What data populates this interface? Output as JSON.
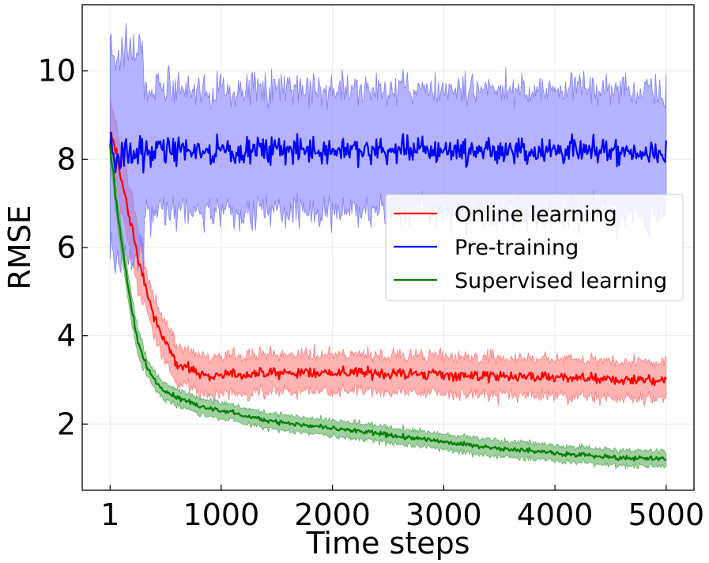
{
  "chart_data": {
    "type": "line",
    "title": "",
    "xlabel": "Time steps",
    "ylabel": "RMSE",
    "xlim": [
      -250,
      5250
    ],
    "ylim": [
      0.5,
      11.5
    ],
    "x_ticks": [
      1,
      1000,
      2000,
      3000,
      4000,
      5000
    ],
    "x_tick_labels": [
      "1",
      "1000",
      "2000",
      "3000",
      "4000",
      "5000"
    ],
    "y_ticks": [
      2,
      4,
      6,
      8,
      10
    ],
    "y_tick_labels": [
      "2",
      "4",
      "6",
      "8",
      "10"
    ],
    "grid": true,
    "legend_position": "center-right",
    "x_range": [
      1,
      5000
    ],
    "series": [
      {
        "name": "Online learning",
        "color": "#ff0000",
        "band_color": "#ff8080",
        "x": [
          1,
          50,
          100,
          150,
          200,
          250,
          300,
          350,
          400,
          450,
          500,
          550,
          600,
          700,
          800,
          900,
          1000,
          1200,
          1500,
          2000,
          2500,
          3000,
          3500,
          4000,
          4500,
          5000
        ],
        "y": [
          8.6,
          8.2,
          7.6,
          7.0,
          6.4,
          5.8,
          5.3,
          4.8,
          4.4,
          4.1,
          3.8,
          3.6,
          3.4,
          3.25,
          3.15,
          3.1,
          3.1,
          3.12,
          3.15,
          3.17,
          3.15,
          3.12,
          3.08,
          3.05,
          3.0,
          3.0
        ],
        "band_halfwidth": 0.35
      },
      {
        "name": "Pre-training",
        "color": "#0000ff",
        "band_color": "#8080ff",
        "x": [
          1,
          100,
          500,
          1000,
          1500,
          2000,
          2500,
          3000,
          3500,
          4000,
          4500,
          5000
        ],
        "y": [
          8.1,
          8.2,
          8.2,
          8.2,
          8.2,
          8.2,
          8.2,
          8.2,
          8.2,
          8.2,
          8.2,
          8.1
        ],
        "band_halfwidth": 1.2
      },
      {
        "name": "Supervised learning",
        "color": "#008000",
        "band_color": "#60b060",
        "x": [
          1,
          50,
          100,
          150,
          200,
          250,
          300,
          350,
          400,
          450,
          500,
          600,
          700,
          800,
          1000,
          1200,
          1500,
          2000,
          2500,
          3000,
          3500,
          4000,
          4500,
          5000
        ],
        "y": [
          8.3,
          7.2,
          6.2,
          5.3,
          4.5,
          3.9,
          3.5,
          3.2,
          3.0,
          2.85,
          2.75,
          2.6,
          2.5,
          2.4,
          2.3,
          2.2,
          2.05,
          1.9,
          1.75,
          1.6,
          1.45,
          1.35,
          1.25,
          1.2
        ],
        "band_halfwidth": 0.15
      }
    ]
  }
}
